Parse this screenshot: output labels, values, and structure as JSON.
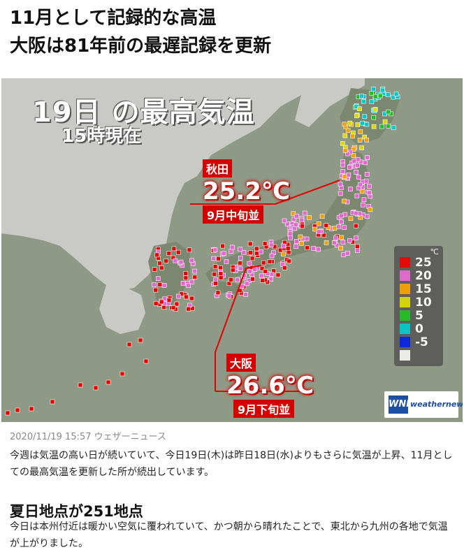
{
  "article": {
    "headline_line1": "11月として記録的な高温",
    "headline_line2": "大阪は81年前の最遅記録を更新",
    "meta": "2020/11/19 15:57 ウェザーニュース",
    "body1": "今週は気温の高い日が続いていて、今日19日(木)は昨日18日(水)よりもさらに気温が上昇、11月としての最高気温を更新した所が続出しています。",
    "section_heading": "夏日地点が251地点",
    "body2": "今日は本州付近は暖かい空気に覆われていて、かつ朝から晴れたことで、東北から九州の各地で気温が上がりました。"
  },
  "map": {
    "title": "19日 の最高気温",
    "subtitle": "15時現在",
    "callouts": {
      "akita": {
        "name": "秋田",
        "temp": "25.2℃",
        "period": "9月中旬並"
      },
      "osaka": {
        "name": "大阪",
        "temp": "26.6℃",
        "period": "9月下旬並"
      }
    },
    "legend": {
      "unit": "℃",
      "items": [
        {
          "label": "25",
          "color": "#e60000"
        },
        {
          "label": "20",
          "color": "#e566d0"
        },
        {
          "label": "15",
          "color": "#f5a000"
        },
        {
          "label": "10",
          "color": "#d8d800"
        },
        {
          "label": "5",
          "color": "#1fbf1f"
        },
        {
          "label": "0",
          "color": "#00c8c8"
        },
        {
          "label": "-5",
          "color": "#0020e0"
        },
        {
          "label": "",
          "color": "#f2f2f2"
        }
      ]
    },
    "logo": {
      "mark": "WNI",
      "text": "weathernews"
    }
  }
}
